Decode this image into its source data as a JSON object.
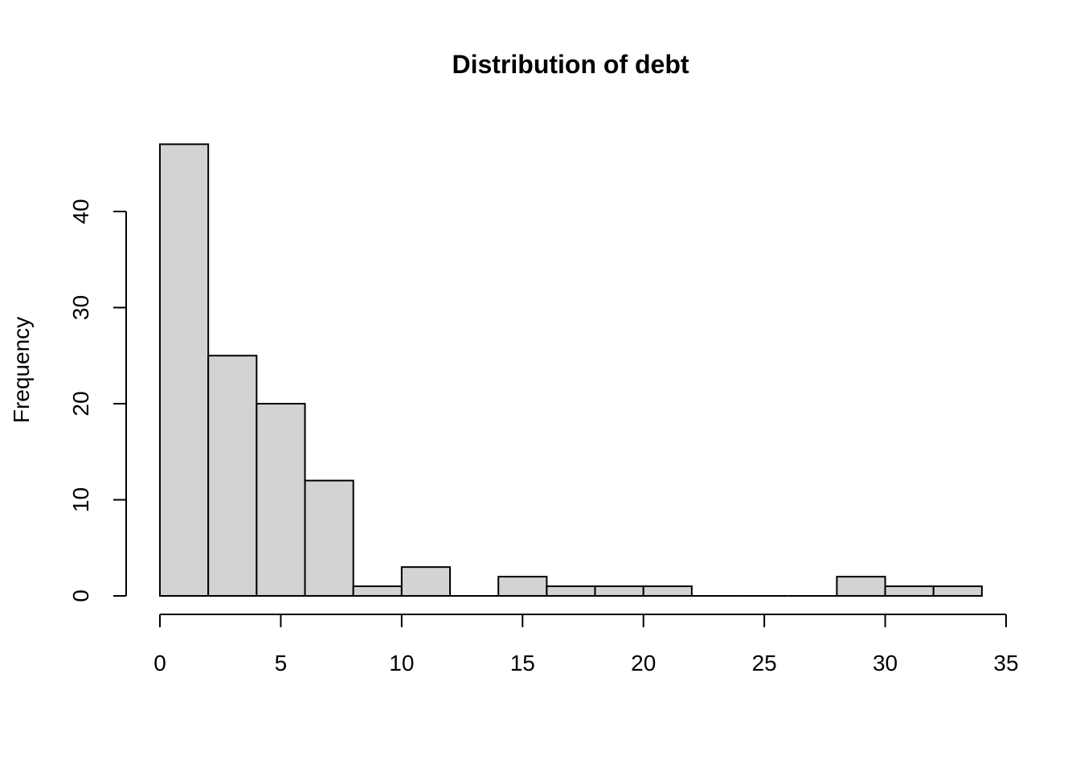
{
  "chart_data": {
    "type": "histogram",
    "title": "Distribution of debt",
    "xlabel": "",
    "ylabel": "Frequency",
    "bin_edges": [
      0,
      2,
      4,
      6,
      8,
      10,
      12,
      14,
      16,
      18,
      20,
      22,
      24,
      26,
      28,
      30,
      32,
      34
    ],
    "values": [
      47,
      25,
      20,
      12,
      1,
      3,
      0,
      2,
      1,
      1,
      1,
      0,
      0,
      0,
      2,
      1,
      1
    ],
    "xlim": [
      0,
      35
    ],
    "ylim": [
      0,
      47
    ],
    "x_ticks": [
      0,
      5,
      10,
      15,
      20,
      25,
      30,
      35
    ],
    "y_ticks": [
      0,
      10,
      20,
      30,
      40
    ],
    "x_tick_labels": [
      "0",
      "5",
      "10",
      "15",
      "20",
      "25",
      "30",
      "35"
    ],
    "y_tick_labels": [
      "0",
      "10",
      "20",
      "30",
      "40"
    ],
    "bar_fill": "#d3d3d3",
    "bar_stroke": "#000000",
    "grid": false,
    "legend": "none"
  }
}
